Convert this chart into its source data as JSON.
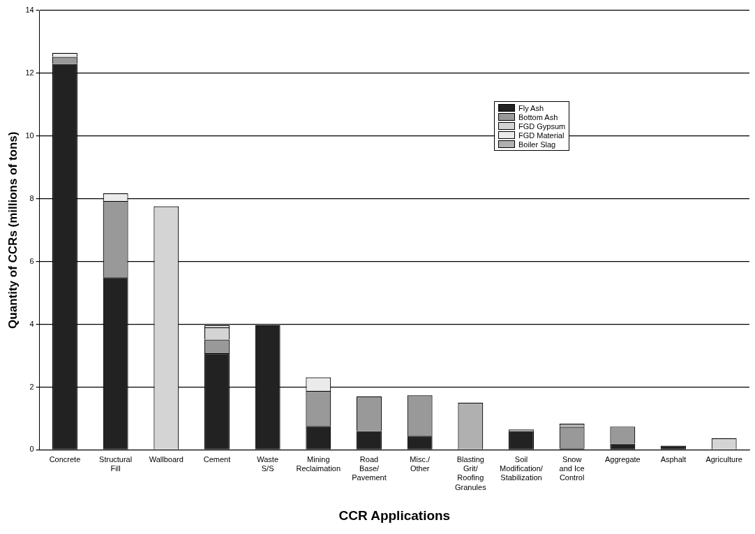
{
  "chart_data": {
    "type": "bar",
    "stacked": true,
    "xlabel": "CCR Applications",
    "ylabel": "Quantity of CCRs (millions of tons)",
    "categories": [
      "Concrete",
      "Structural\nFill",
      "Wallboard",
      "Cement",
      "Waste\nS/S",
      "Mining\nReclaimation",
      "Road\nBase/\nPavement",
      "Misc./\nOther",
      "Blasting\nGrit/\nRoofing\nGranules",
      "Soil\nModification/\nStabilization",
      "Snow\nand Ice\nControl",
      "Aggregate",
      "Asphalt",
      "Agriculture"
    ],
    "series": [
      {
        "name": "Fly Ash",
        "color": "#222222",
        "values": [
          12.3,
          5.5,
          null,
          3.08,
          3.97,
          0.76,
          0.6,
          0.45,
          null,
          0.6,
          0.05,
          0.2,
          0.13,
          null
        ]
      },
      {
        "name": "Bottom Ash",
        "color": "#999999",
        "values": [
          0.22,
          2.43,
          null,
          0.43,
          null,
          1.12,
          1.1,
          1.29,
          null,
          0.05,
          0.68,
          0.54,
          null,
          null
        ]
      },
      {
        "name": "FGD Gypsum",
        "color": "#d4d4d4",
        "values": [
          null,
          null,
          7.76,
          0.39,
          null,
          null,
          null,
          null,
          null,
          null,
          null,
          null,
          null,
          0.37
        ]
      },
      {
        "name": "FGD Material",
        "color": "#ebebeb",
        "values": [
          0.13,
          0.24,
          null,
          0.07,
          null,
          0.43,
          null,
          null,
          null,
          null,
          null,
          null,
          null,
          null
        ]
      },
      {
        "name": "Boiler Slag",
        "color": "#b0b0b0",
        "values": [
          null,
          null,
          null,
          null,
          null,
          null,
          null,
          null,
          1.5,
          null,
          0.1,
          null,
          null,
          null
        ]
      }
    ],
    "ylim": [
      0,
      14
    ],
    "yticks": [
      0,
      2,
      4,
      6,
      8,
      10,
      12,
      14
    ],
    "grid": "y",
    "legend": "top right"
  }
}
